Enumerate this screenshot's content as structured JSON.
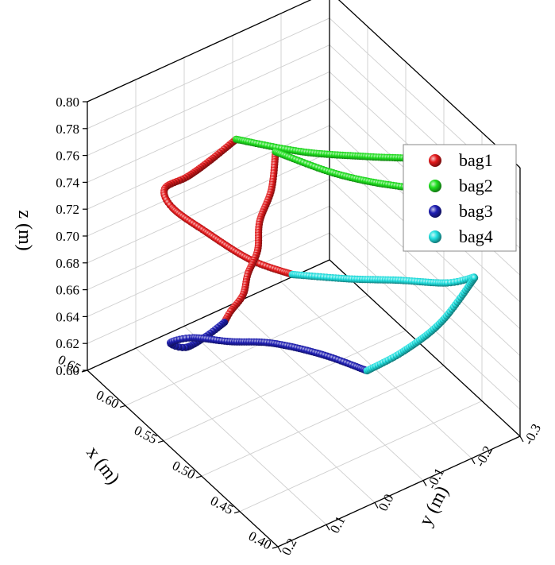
{
  "chart_data": {
    "type": "scatter",
    "projection": "3d",
    "xlabel": "x (m)",
    "ylabel": "y (m)",
    "zlabel": "z (m)",
    "xlim": [
      0.4,
      0.65
    ],
    "ylim": [
      -0.3,
      0.2
    ],
    "zlim": [
      0.6,
      0.8
    ],
    "x_ticks": [
      "0.40",
      "0.45",
      "0.50",
      "0.55",
      "0.60",
      "0.65"
    ],
    "y_ticks": [
      "0.2",
      "0.1",
      "0.0",
      "-0.1",
      "-0.2",
      "-0.3"
    ],
    "z_ticks": [
      "0.60",
      "0.62",
      "0.64",
      "0.66",
      "0.68",
      "0.70",
      "0.72",
      "0.74",
      "0.76",
      "0.78",
      "0.80"
    ],
    "grid": true,
    "legend_position": "top-right",
    "series": [
      {
        "name": "bag1",
        "color": "#e41a1c",
        "segments": [
          [
            [
              0.62,
              -0.06,
              0.745
            ],
            [
              0.63,
              -0.02,
              0.73
            ],
            [
              0.64,
              0.01,
              0.718
            ],
            [
              0.65,
              0.04,
              0.709
            ],
            [
              0.64,
              0.04,
              0.7
            ],
            [
              0.61,
              0.02,
              0.695
            ],
            [
              0.57,
              -0.01,
              0.69
            ],
            [
              0.54,
              -0.05,
              0.688
            ]
          ],
          [
            [
              0.6,
              -0.11,
              0.738
            ],
            [
              0.58,
              -0.07,
              0.727
            ],
            [
              0.57,
              -0.03,
              0.715
            ],
            [
              0.56,
              -0.01,
              0.702
            ],
            [
              0.56,
              0.01,
              0.688
            ],
            [
              0.56,
              0.02,
              0.674
            ],
            [
              0.57,
              0.03,
              0.658
            ],
            [
              0.575,
              0.035,
              0.648
            ]
          ]
        ]
      },
      {
        "name": "bag2",
        "color": "#1ee01e",
        "segments": [
          [
            [
              0.62,
              -0.06,
              0.745
            ],
            [
              0.57,
              -0.12,
              0.752
            ],
            [
              0.53,
              -0.19,
              0.758
            ],
            [
              0.5,
              -0.26,
              0.76
            ],
            [
              0.475,
              -0.3,
              0.759
            ],
            [
              0.47,
              -0.31,
              0.758
            ]
          ],
          [
            [
              0.6,
              -0.11,
              0.738
            ],
            [
              0.55,
              -0.15,
              0.742
            ],
            [
              0.51,
              -0.2,
              0.746
            ],
            [
              0.48,
              -0.26,
              0.749
            ],
            [
              0.47,
              -0.31,
              0.758
            ]
          ]
        ]
      },
      {
        "name": "bag3",
        "color": "#1f1fb4",
        "segments": [
          [
            [
              0.575,
              0.035,
              0.648
            ],
            [
              0.59,
              0.05,
              0.632
            ],
            [
              0.61,
              0.06,
              0.615
            ],
            [
              0.63,
              0.06,
              0.608
            ],
            [
              0.62,
              0.03,
              0.612
            ],
            [
              0.59,
              0.0,
              0.62
            ],
            [
              0.56,
              -0.04,
              0.628
            ],
            [
              0.52,
              -0.08,
              0.634
            ],
            [
              0.48,
              -0.11,
              0.638
            ]
          ]
        ]
      },
      {
        "name": "bag4",
        "color": "#21e0e0",
        "segments": [
          [
            [
              0.54,
              -0.05,
              0.688
            ],
            [
              0.51,
              -0.12,
              0.689
            ],
            [
              0.49,
              -0.19,
              0.687
            ],
            [
              0.47,
              -0.26,
              0.684
            ],
            [
              0.465,
              -0.31,
              0.683
            ]
          ],
          [
            [
              0.48,
              -0.11,
              0.638
            ],
            [
              0.47,
              -0.17,
              0.648
            ],
            [
              0.465,
              -0.24,
              0.661
            ],
            [
              0.465,
              -0.31,
              0.683
            ]
          ]
        ]
      }
    ]
  }
}
